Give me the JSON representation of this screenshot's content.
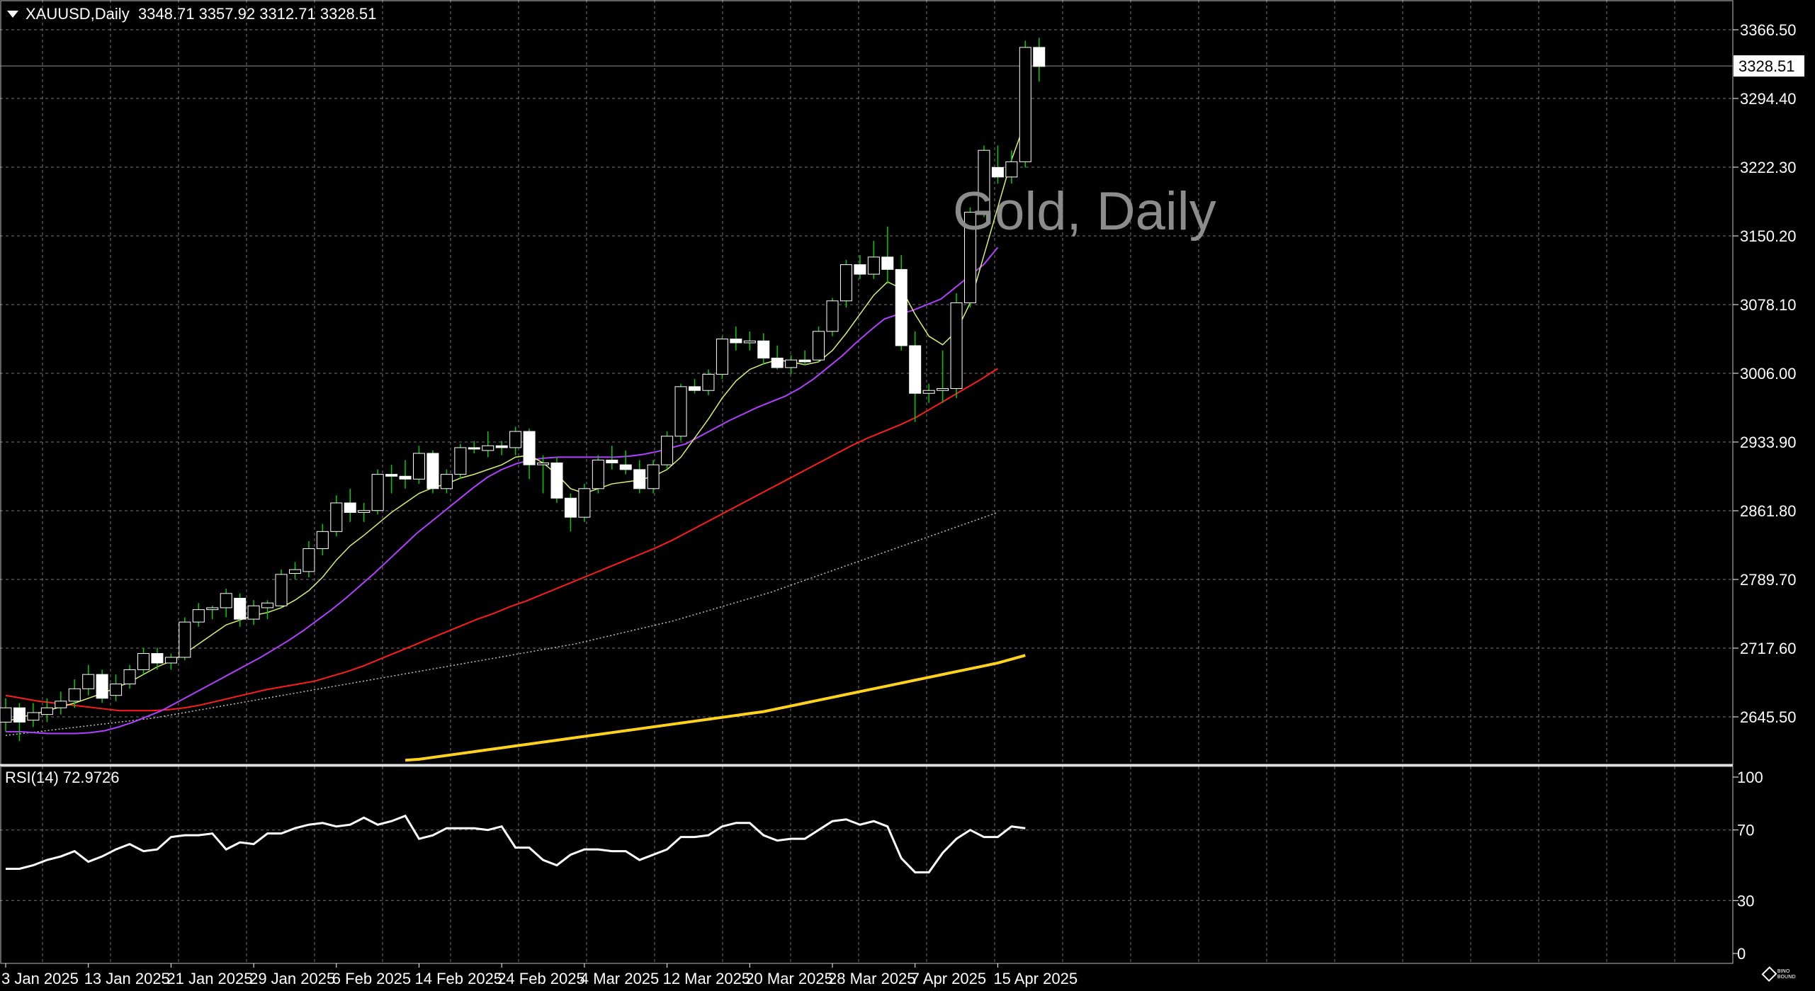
{
  "header": {
    "symbol": "XAUUSD,Daily",
    "ohlc": "3348.71 3357.92 3312.71 3328.51"
  },
  "watermark": "Gold, Daily",
  "rsi_label": "RSI(14) 72.9726",
  "logo_text": "BINO BOUND",
  "colors": {
    "background": "#000000",
    "grid": "#ffffff",
    "candle_up_fill": "#000000",
    "candle_down_fill": "#ffffff",
    "candle_body_border": "#ffffff",
    "wick": "#00cc00",
    "ma_fast": "#d4f270",
    "ma_mid": "#b040ff",
    "ma_slow": "#ff1c1c",
    "ma_long": "#bfbfbf",
    "ma_200": "#ffd21c",
    "rsi": "#ffffff",
    "current_price_line": "#909090"
  },
  "chart_data": [
    {
      "type": "candlestick",
      "symbol": "XAUUSD",
      "timeframe": "Daily",
      "current_price": 3328.51,
      "y_ticks": [
        2645.5,
        2717.6,
        2789.7,
        2861.8,
        2933.9,
        3006.0,
        3078.1,
        3150.2,
        3222.3,
        3294.4,
        3366.5
      ],
      "y_tick_labels": [
        "2645.50",
        "2717.60",
        "2789.70",
        "2861.80",
        "2933.90",
        "3006.00",
        "3078.10",
        "3150.20",
        "3222.30",
        "3294.40",
        "3366.50"
      ],
      "x_labels": [
        "3 Jan 2025",
        "13 Jan 2025",
        "21 Jan 2025",
        "29 Jan 2025",
        "6 Feb 2025",
        "14 Feb 2025",
        "24 Feb 2025",
        "4 Mar 2025",
        "12 Mar 2025",
        "20 Mar 2025",
        "28 Mar 2025",
        "7 Apr 2025",
        "15 Apr 2025"
      ],
      "x_label_index": [
        0,
        6,
        12,
        18,
        24,
        30,
        36,
        42,
        48,
        54,
        60,
        66,
        72
      ],
      "ylim": [
        2600,
        3390
      ],
      "candles": [
        [
          2640,
          2665,
          2630,
          2655
        ],
        [
          2655,
          2660,
          2620,
          2640
        ],
        [
          2642,
          2660,
          2635,
          2650
        ],
        [
          2648,
          2665,
          2640,
          2655
        ],
        [
          2655,
          2672,
          2648,
          2662
        ],
        [
          2662,
          2685,
          2655,
          2675
        ],
        [
          2675,
          2700,
          2668,
          2690
        ],
        [
          2690,
          2695,
          2660,
          2665
        ],
        [
          2668,
          2690,
          2662,
          2680
        ],
        [
          2680,
          2700,
          2675,
          2695
        ],
        [
          2695,
          2718,
          2690,
          2712
        ],
        [
          2712,
          2718,
          2695,
          2702
        ],
        [
          2702,
          2712,
          2695,
          2708
        ],
        [
          2708,
          2750,
          2705,
          2745
        ],
        [
          2745,
          2765,
          2740,
          2758
        ],
        [
          2758,
          2762,
          2748,
          2760
        ],
        [
          2760,
          2780,
          2750,
          2775
        ],
        [
          2770,
          2775,
          2740,
          2748
        ],
        [
          2748,
          2768,
          2742,
          2762
        ],
        [
          2760,
          2768,
          2748,
          2765
        ],
        [
          2762,
          2800,
          2760,
          2795
        ],
        [
          2796,
          2808,
          2790,
          2800
        ],
        [
          2798,
          2830,
          2792,
          2822
        ],
        [
          2822,
          2848,
          2815,
          2840
        ],
        [
          2840,
          2878,
          2835,
          2870
        ],
        [
          2870,
          2885,
          2850,
          2860
        ],
        [
          2860,
          2870,
          2850,
          2862
        ],
        [
          2862,
          2905,
          2858,
          2900
        ],
        [
          2900,
          2910,
          2880,
          2898
        ],
        [
          2898,
          2915,
          2885,
          2895
        ],
        [
          2895,
          2930,
          2890,
          2922
        ],
        [
          2922,
          2925,
          2880,
          2885
        ],
        [
          2885,
          2905,
          2880,
          2900
        ],
        [
          2900,
          2932,
          2895,
          2928
        ],
        [
          2928,
          2935,
          2922,
          2927
        ],
        [
          2925,
          2945,
          2918,
          2930
        ],
        [
          2930,
          2935,
          2920,
          2928
        ],
        [
          2928,
          2950,
          2920,
          2945
        ],
        [
          2945,
          2948,
          2895,
          2910
        ],
        [
          2910,
          2920,
          2880,
          2912
        ],
        [
          2912,
          2918,
          2870,
          2875
        ],
        [
          2875,
          2880,
          2840,
          2855
        ],
        [
          2855,
          2890,
          2850,
          2885
        ],
        [
          2885,
          2920,
          2880,
          2915
        ],
        [
          2915,
          2930,
          2905,
          2912
        ],
        [
          2910,
          2925,
          2900,
          2905
        ],
        [
          2905,
          2915,
          2880,
          2885
        ],
        [
          2885,
          2915,
          2880,
          2910
        ],
        [
          2910,
          2945,
          2905,
          2940
        ],
        [
          2940,
          2995,
          2935,
          2992
        ],
        [
          2992,
          3000,
          2985,
          2988
        ],
        [
          2988,
          3010,
          2983,
          3005
        ],
        [
          3005,
          3045,
          3000,
          3042
        ],
        [
          3042,
          3055,
          3030,
          3038
        ],
        [
          3038,
          3050,
          3030,
          3040
        ],
        [
          3040,
          3048,
          3015,
          3022
        ],
        [
          3022,
          3035,
          3010,
          3012
        ],
        [
          3012,
          3025,
          3005,
          3020
        ],
        [
          3020,
          3030,
          3015,
          3018
        ],
        [
          3020,
          3055,
          3018,
          3050
        ],
        [
          3050,
          3085,
          3045,
          3082
        ],
        [
          3082,
          3125,
          3075,
          3120
        ],
        [
          3120,
          3130,
          3105,
          3110
        ],
        [
          3110,
          3145,
          3105,
          3128
        ],
        [
          3128,
          3160,
          3100,
          3115
        ],
        [
          3115,
          3130,
          3030,
          3035
        ],
        [
          3035,
          3050,
          2955,
          2985
        ],
        [
          2985,
          2995,
          2975,
          2988
        ],
        [
          2988,
          3030,
          2975,
          2990
        ],
        [
          2990,
          3090,
          2980,
          3080
        ],
        [
          3080,
          3180,
          3075,
          3175
        ],
        [
          3175,
          3245,
          3170,
          3240
        ],
        [
          3222,
          3245,
          3205,
          3212
        ],
        [
          3212,
          3240,
          3205,
          3228
        ],
        [
          3228,
          3355,
          3222,
          3348
        ],
        [
          3348,
          3358,
          3312,
          3328
        ]
      ],
      "ma_fast": [
        2640,
        2645,
        2648,
        2652,
        2656,
        2660,
        2665,
        2670,
        2676,
        2682,
        2690,
        2698,
        2704,
        2712,
        2722,
        2732,
        2742,
        2747,
        2752,
        2755,
        2760,
        2768,
        2778,
        2792,
        2810,
        2825,
        2836,
        2848,
        2860,
        2870,
        2880,
        2886,
        2890,
        2896,
        2900,
        2905,
        2910,
        2918,
        2920,
        2912,
        2900,
        2885,
        2880,
        2885,
        2890,
        2892,
        2894,
        2898,
        2905,
        2918,
        2938,
        2958,
        2980,
        2998,
        3010,
        3016,
        3020,
        3018,
        3015,
        3018,
        3030,
        3048,
        3068,
        3088,
        3102,
        3095,
        3068,
        3045,
        3036,
        3050,
        3080,
        3130,
        3180,
        3230,
        3270
      ],
      "ma_mid": [
        2630,
        2630,
        2629,
        2628,
        2628,
        2628,
        2629,
        2631,
        2635,
        2640,
        2646,
        2652,
        2660,
        2668,
        2676,
        2684,
        2692,
        2700,
        2708,
        2717,
        2726,
        2736,
        2747,
        2758,
        2770,
        2783,
        2796,
        2810,
        2824,
        2838,
        2850,
        2862,
        2874,
        2886,
        2897,
        2905,
        2911,
        2915,
        2917,
        2918,
        2918,
        2918,
        2918,
        2918,
        2919,
        2921,
        2924,
        2928,
        2932,
        2940,
        2948,
        2956,
        2963,
        2970,
        2976,
        2982,
        2990,
        3000,
        3012,
        3024,
        3038,
        3051,
        3063,
        3068,
        3072,
        3078,
        3084,
        3096,
        3108,
        3120,
        3138
      ],
      "ma_slow": [
        2668,
        2665,
        2662,
        2660,
        2658,
        2656,
        2654,
        2652,
        2652,
        2652,
        2653,
        2655,
        2658,
        2662,
        2666,
        2670,
        2674,
        2677,
        2680,
        2683,
        2688,
        2693,
        2699,
        2706,
        2713,
        2720,
        2727,
        2734,
        2741,
        2748,
        2754,
        2761,
        2767,
        2774,
        2781,
        2788,
        2795,
        2802,
        2809,
        2816,
        2823,
        2831,
        2840,
        2849,
        2858,
        2867,
        2876,
        2885,
        2894,
        2903,
        2912,
        2921,
        2930,
        2938,
        2945,
        2952,
        2960,
        2970,
        2980,
        2990,
        3000,
        3011
      ],
      "ma_long": [
        2626,
        2628,
        2630,
        2632,
        2634,
        2636,
        2638,
        2640,
        2642,
        2644,
        2647,
        2650,
        2653,
        2656,
        2659,
        2662,
        2665,
        2668,
        2671,
        2674,
        2677,
        2680,
        2683,
        2686,
        2689,
        2692,
        2695,
        2698,
        2701,
        2704,
        2707,
        2710,
        2713,
        2716,
        2719,
        2722,
        2726,
        2730,
        2734,
        2738,
        2742,
        2746,
        2751,
        2756,
        2761,
        2766,
        2771,
        2776,
        2782,
        2788,
        2794,
        2800,
        2806,
        2812,
        2818,
        2824,
        2830,
        2836,
        2842,
        2848,
        2854,
        2860
      ],
      "ma_200": [
        2600,
        2601,
        2603,
        2605,
        2607,
        2609,
        2611,
        2613,
        2615,
        2617,
        2619,
        2621,
        2623,
        2625,
        2627,
        2629,
        2631,
        2633,
        2635,
        2637,
        2639,
        2641,
        2643,
        2645,
        2647,
        2649,
        2651,
        2654,
        2657,
        2660,
        2663,
        2666,
        2669,
        2672,
        2675,
        2678,
        2681,
        2684,
        2687,
        2690,
        2693,
        2696,
        2699,
        2702,
        2706,
        2710
      ]
    },
    {
      "type": "line",
      "name": "RSI(14)",
      "current_value": 72.9726,
      "y_ticks": [
        0,
        30,
        70,
        100
      ],
      "ylim": [
        0,
        100
      ],
      "values": [
        48,
        48,
        50,
        53,
        55,
        58,
        52,
        55,
        59,
        62,
        58,
        59,
        66,
        67,
        67,
        68,
        59,
        63,
        62,
        68,
        68,
        71,
        73,
        74,
        72,
        73,
        77,
        73,
        75,
        78,
        65,
        67,
        71,
        71,
        71,
        70,
        72,
        60,
        60,
        53,
        50,
        56,
        59,
        59,
        58,
        58,
        53,
        56,
        59,
        66,
        66,
        67,
        72,
        74,
        74,
        67,
        64,
        65,
        65,
        70,
        75,
        76,
        73,
        75,
        72,
        54,
        46,
        46,
        57,
        65,
        70,
        66,
        66,
        72,
        71
      ]
    }
  ]
}
